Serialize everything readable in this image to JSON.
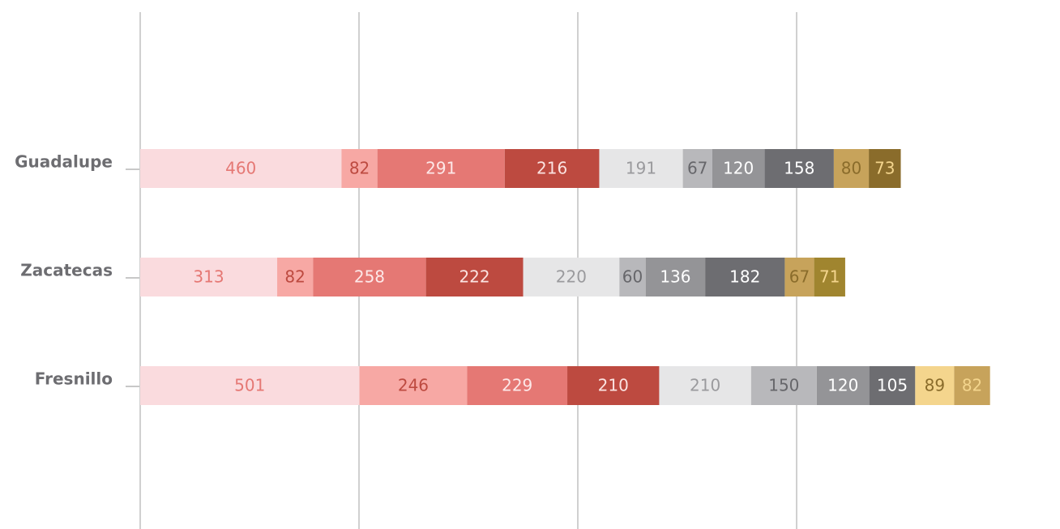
{
  "chart_data": {
    "type": "stacked-bar-horizontal",
    "categories": [
      "Guadalupe",
      "Zacatecas",
      "Fresnillo"
    ],
    "series": [
      {
        "color": "#fadbde",
        "values": [
          460,
          313,
          501
        ]
      },
      {
        "color": "#f7a8a4",
        "values": [
          82,
          82,
          246
        ]
      },
      {
        "color": "#e57874",
        "values": [
          291,
          258,
          229
        ]
      },
      {
        "color": "#bd4a40",
        "values": [
          216,
          222,
          210
        ]
      },
      {
        "color": "#e6e6e7",
        "values": [
          191,
          220,
          210
        ]
      },
      {
        "color": "#b8b8bb",
        "values": [
          67,
          60,
          150
        ]
      },
      {
        "color": "#949497",
        "values": [
          120,
          136,
          120
        ]
      },
      {
        "color": "#6d6d71",
        "values": [
          158,
          182,
          105
        ]
      },
      {
        "colors": [
          "#c7a35b",
          "#c7a35b",
          "#f4d58d"
        ],
        "values": [
          80,
          67,
          89
        ]
      },
      {
        "colors": [
          "#8a6c2b",
          "#a0852f",
          "#c7a35b"
        ],
        "values": [
          73,
          71,
          82
        ]
      }
    ],
    "xlim": [
      0,
      2000
    ],
    "xticks": [
      0,
      500,
      1000,
      1500
    ],
    "grid": true
  }
}
